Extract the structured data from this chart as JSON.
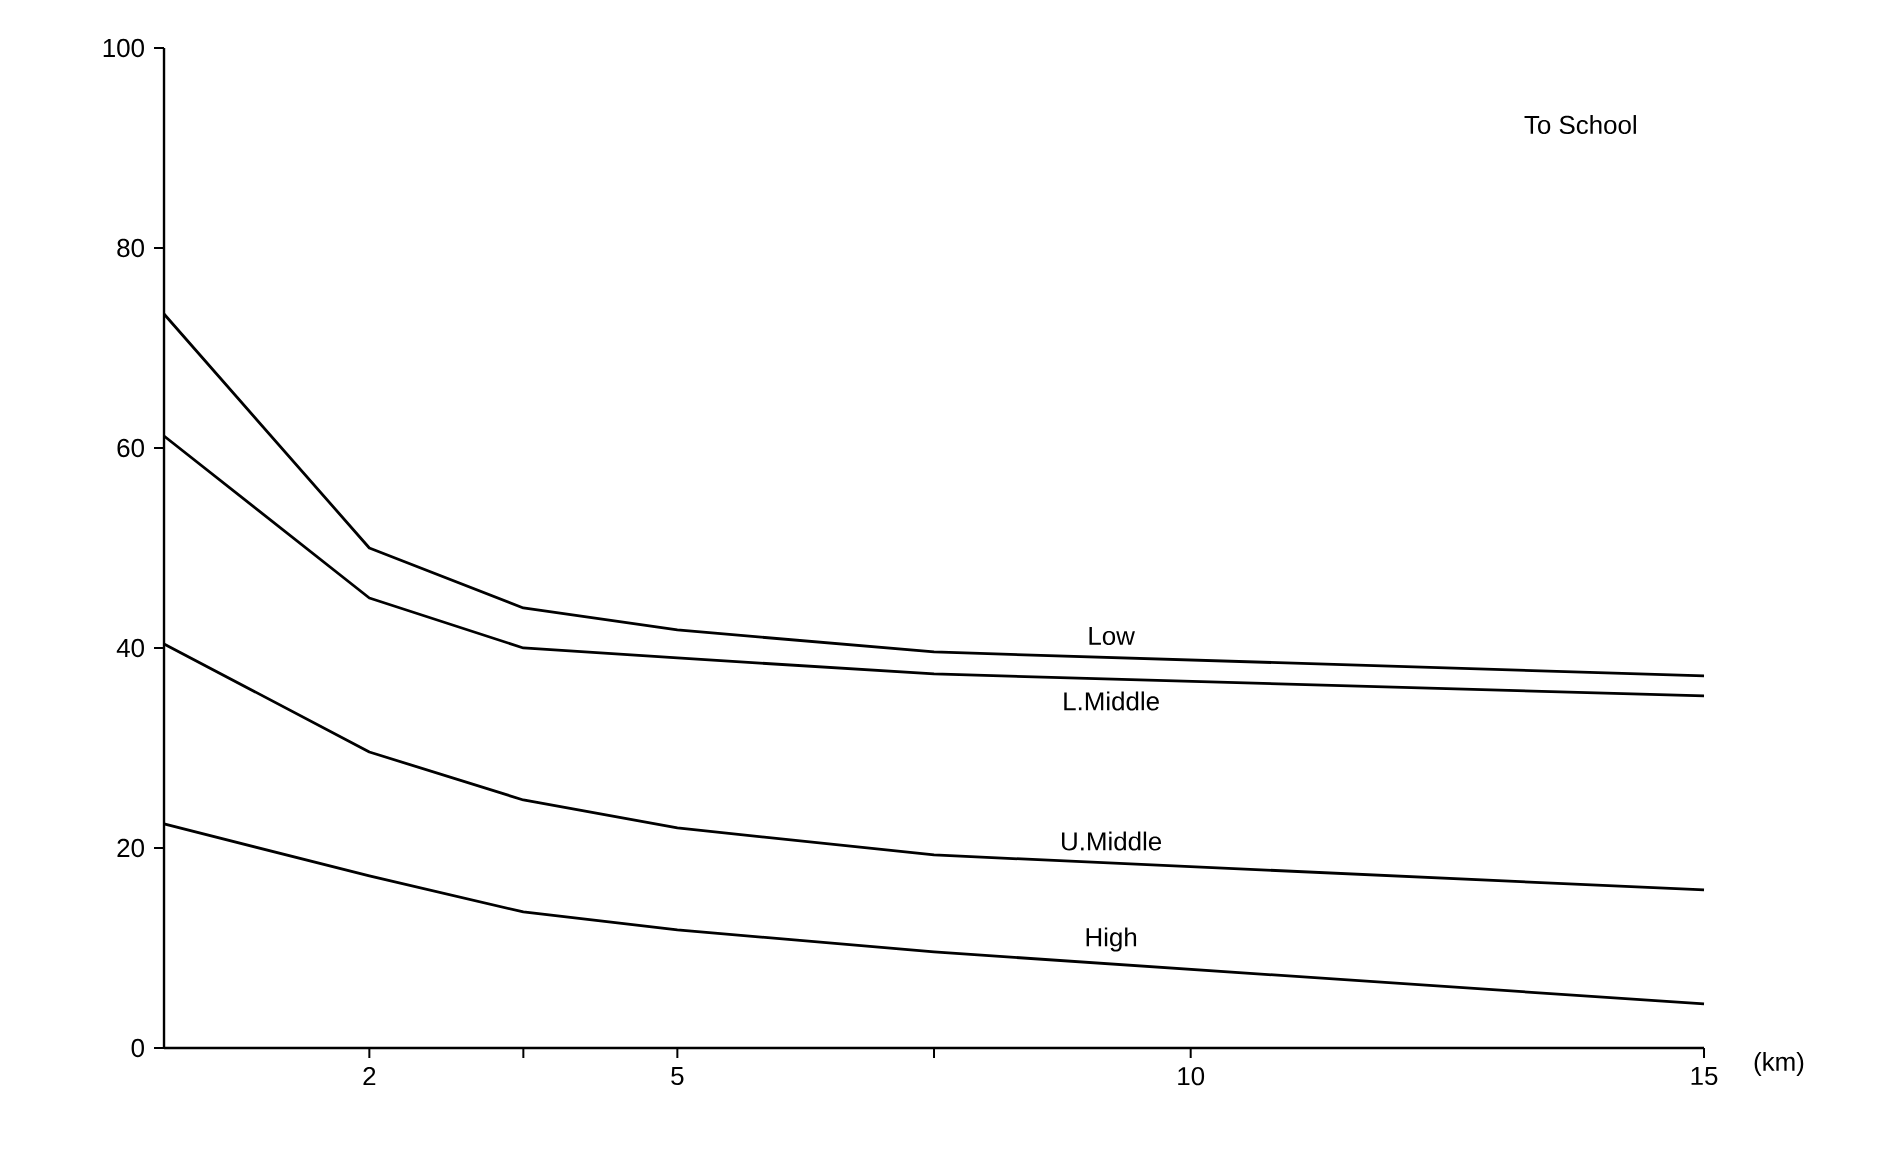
{
  "chart_data": {
    "type": "line",
    "title": "To School",
    "xlabel": "(km)",
    "x": [
      0,
      2,
      3.5,
      5,
      7.5,
      15
    ],
    "series": [
      {
        "name": "Low",
        "color": "#000000",
        "values": [
          73.4,
          50,
          44,
          41.8,
          39.6,
          37.2
        ]
      },
      {
        "name": "L.Middle",
        "color": "#000000",
        "values": [
          61.2,
          45,
          40,
          39,
          37.4,
          35.2
        ]
      },
      {
        "name": "U.Middle",
        "color": "#000000",
        "values": [
          40.4,
          29.6,
          24.8,
          22,
          19.3,
          15.8
        ]
      },
      {
        "name": "High",
        "color": "#000000",
        "values": [
          22.4,
          17.2,
          13.6,
          11.8,
          9.6,
          4.4
        ]
      }
    ],
    "xlim": [
      0,
      15
    ],
    "ylim": [
      0,
      100
    ],
    "xticks": [
      2,
      {
        "value": 3.5,
        "label": null
      },
      5,
      {
        "value": 7.5,
        "label": null
      },
      10,
      15
    ],
    "yticks": [
      0,
      20,
      40,
      60,
      80,
      100
    ],
    "grid": false,
    "legend": false,
    "marker": "none",
    "line_style": "solid"
  }
}
